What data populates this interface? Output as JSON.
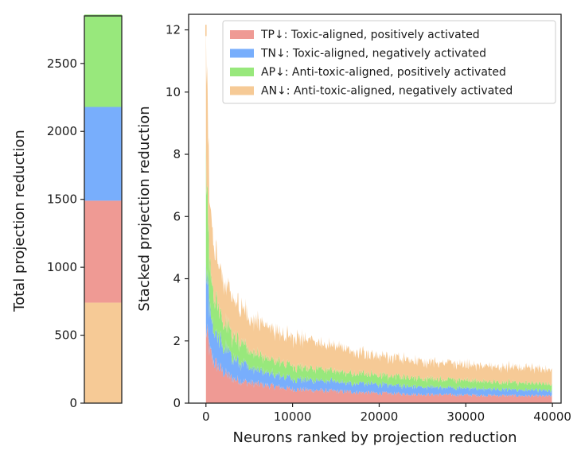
{
  "colors": {
    "TP": "#ef9a94",
    "TN": "#78aefc",
    "AP": "#98e87c",
    "AN": "#f6ca96"
  },
  "chart_data": [
    {
      "type": "bar",
      "stacked": true,
      "ylabel": "Total projection reduction",
      "xlabel": "",
      "ylim": [
        0,
        2850
      ],
      "yticks": [
        "0",
        "500",
        "1000",
        "1500",
        "2000",
        "2500"
      ],
      "series": [
        {
          "key": "AN",
          "value": 740
        },
        {
          "key": "TP",
          "value": 750
        },
        {
          "key": "TN",
          "value": 690
        },
        {
          "key": "AP",
          "value": 680
        }
      ]
    },
    {
      "type": "area",
      "stacked": true,
      "xlabel": "Neurons ranked by projection reduction",
      "ylabel": "Stacked projection reduction",
      "xlim": [
        -2000,
        41000
      ],
      "ylim": [
        0,
        12.5
      ],
      "xticks": [
        "0",
        "10000",
        "20000",
        "30000",
        "40000"
      ],
      "yticks": [
        "0",
        "2",
        "4",
        "6",
        "8",
        "10",
        "12"
      ],
      "legend_position": "top-right",
      "x": [
        0,
        250,
        500,
        1000,
        2000,
        3000,
        5000,
        7500,
        10000,
        15000,
        20000,
        25000,
        30000,
        35000,
        40000
      ],
      "series": [
        {
          "key": "TP",
          "name": "TP↓: Toxic-aligned, positively activated",
          "values": [
            2.4,
            2.0,
            1.6,
            1.3,
            1.0,
            0.8,
            0.65,
            0.55,
            0.45,
            0.38,
            0.32,
            0.28,
            0.26,
            0.24,
            0.22
          ]
        },
        {
          "key": "TN",
          "name": "TN↓: Toxic-aligned, negatively activated",
          "values": [
            2.0,
            1.5,
            1.2,
            1.0,
            0.8,
            0.7,
            0.5,
            0.4,
            0.35,
            0.3,
            0.28,
            0.25,
            0.22,
            0.2,
            0.18
          ]
        },
        {
          "key": "AP",
          "name": "AP↓: Anti-toxic-aligned, positively activated",
          "values": [
            3.5,
            2.0,
            1.5,
            1.1,
            0.85,
            0.7,
            0.55,
            0.45,
            0.4,
            0.34,
            0.3,
            0.27,
            0.25,
            0.23,
            0.2
          ]
        },
        {
          "key": "AN",
          "name": "AN↓: Anti-toxic-aligned, negatively activated",
          "values": [
            3.9,
            2.5,
            2.1,
            1.6,
            1.35,
            1.2,
            1.05,
            1.0,
            0.95,
            0.78,
            0.6,
            0.55,
            0.5,
            0.48,
            0.45
          ]
        }
      ],
      "peak": {
        "x": 0,
        "y": 11.8
      }
    }
  ]
}
